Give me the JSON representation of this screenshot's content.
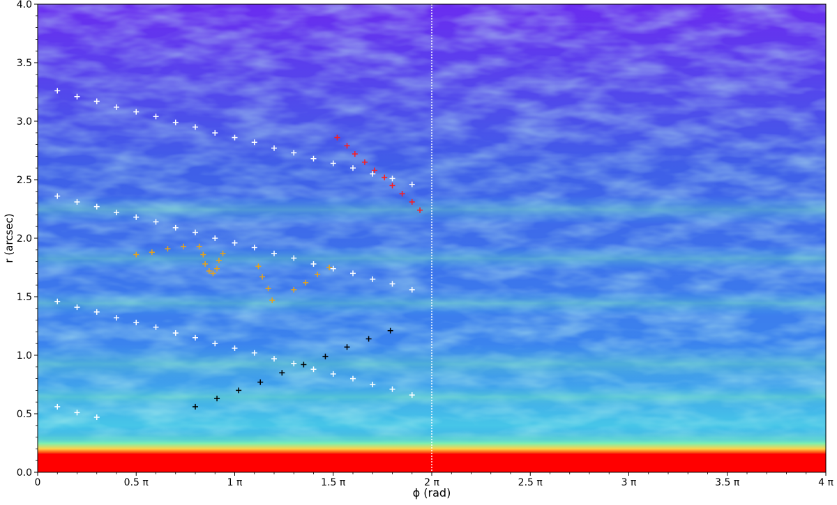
{
  "chart_data": {
    "type": "heatmap",
    "title": "",
    "xlabel": "ϕ (rad)",
    "ylabel": "r (arcsec)",
    "xlim": [
      0,
      4
    ],
    "ylim": [
      0.0,
      4.0
    ],
    "x_unit": "π rad",
    "xticks": [
      0,
      0.5,
      1,
      1.5,
      2,
      2.5,
      3,
      3.5,
      4
    ],
    "xtick_labels": [
      "0",
      "0.5 π",
      "1 π",
      "1.5 π",
      "2 π",
      "2.5 π",
      "3 π",
      "3.5 π",
      "4 π"
    ],
    "yticks": [
      0.0,
      0.5,
      1.0,
      1.5,
      2.0,
      2.5,
      3.0,
      3.5,
      4.0
    ],
    "ytick_labels": [
      "0.0",
      "0.5",
      "1.0",
      "1.5",
      "2.0",
      "2.5",
      "3.0",
      "3.5",
      "4.0"
    ],
    "colormap": "rainbow",
    "grid": false,
    "reference_line": {
      "x": 2,
      "color": "#ffffff",
      "style": "dotted"
    },
    "series": [
      {
        "color": "#ffffff",
        "marker": "+",
        "points": [
          [
            0.1,
            3.26
          ],
          [
            0.2,
            3.21
          ],
          [
            0.3,
            3.17
          ],
          [
            0.4,
            3.12
          ],
          [
            0.5,
            3.08
          ],
          [
            0.6,
            3.04
          ],
          [
            0.7,
            2.99
          ],
          [
            0.8,
            2.95
          ],
          [
            0.9,
            2.9
          ],
          [
            1.0,
            2.86
          ],
          [
            1.1,
            2.82
          ],
          [
            1.2,
            2.77
          ],
          [
            1.3,
            2.73
          ],
          [
            1.4,
            2.68
          ],
          [
            1.5,
            2.64
          ],
          [
            1.6,
            2.6
          ],
          [
            1.7,
            2.55
          ],
          [
            1.8,
            2.51
          ],
          [
            1.9,
            2.46
          ]
        ]
      },
      {
        "color": "#ffffff",
        "marker": "+",
        "points": [
          [
            0.1,
            2.36
          ],
          [
            0.2,
            2.31
          ],
          [
            0.3,
            2.27
          ],
          [
            0.4,
            2.22
          ],
          [
            0.5,
            2.18
          ],
          [
            0.6,
            2.14
          ],
          [
            0.7,
            2.09
          ],
          [
            0.8,
            2.05
          ],
          [
            0.9,
            2.0
          ],
          [
            1.0,
            1.96
          ],
          [
            1.1,
            1.92
          ],
          [
            1.2,
            1.87
          ],
          [
            1.3,
            1.83
          ],
          [
            1.4,
            1.78
          ],
          [
            1.5,
            1.74
          ],
          [
            1.6,
            1.7
          ],
          [
            1.7,
            1.65
          ],
          [
            1.8,
            1.61
          ],
          [
            1.9,
            1.56
          ]
        ]
      },
      {
        "color": "#ffffff",
        "marker": "+",
        "points": [
          [
            0.1,
            1.46
          ],
          [
            0.2,
            1.41
          ],
          [
            0.3,
            1.37
          ],
          [
            0.4,
            1.32
          ],
          [
            0.5,
            1.28
          ],
          [
            0.6,
            1.24
          ],
          [
            0.7,
            1.19
          ],
          [
            0.8,
            1.15
          ],
          [
            0.9,
            1.1
          ],
          [
            1.0,
            1.06
          ],
          [
            1.1,
            1.02
          ],
          [
            1.2,
            0.97
          ],
          [
            1.3,
            0.93
          ],
          [
            1.4,
            0.88
          ],
          [
            1.5,
            0.84
          ],
          [
            1.6,
            0.8
          ],
          [
            1.7,
            0.75
          ],
          [
            1.8,
            0.71
          ],
          [
            1.9,
            0.66
          ]
        ]
      },
      {
        "color": "#ffffff",
        "marker": "+",
        "points": [
          [
            0.1,
            0.56
          ],
          [
            0.2,
            0.51
          ],
          [
            0.3,
            0.47
          ]
        ]
      },
      {
        "color": "#e8a317",
        "marker": "+",
        "points": [
          [
            0.5,
            1.86
          ],
          [
            0.58,
            1.88
          ],
          [
            0.66,
            1.91
          ],
          [
            0.74,
            1.93
          ],
          [
            0.82,
            1.93
          ],
          [
            0.84,
            1.86
          ],
          [
            0.85,
            1.78
          ],
          [
            0.87,
            1.72
          ],
          [
            0.89,
            1.7
          ],
          [
            0.91,
            1.74
          ],
          [
            0.92,
            1.81
          ],
          [
            0.94,
            1.87
          ],
          [
            1.12,
            1.76
          ],
          [
            1.14,
            1.67
          ],
          [
            1.17,
            1.57
          ],
          [
            1.19,
            1.47
          ],
          [
            1.3,
            1.56
          ],
          [
            1.36,
            1.62
          ],
          [
            1.42,
            1.69
          ],
          [
            1.48,
            1.75
          ]
        ]
      },
      {
        "color": "#ff1a1a",
        "marker": "+",
        "points": [
          [
            1.52,
            2.86
          ],
          [
            1.57,
            2.79
          ],
          [
            1.61,
            2.72
          ],
          [
            1.66,
            2.65
          ],
          [
            1.71,
            2.58
          ],
          [
            1.76,
            2.52
          ],
          [
            1.8,
            2.45
          ],
          [
            1.85,
            2.38
          ],
          [
            1.9,
            2.31
          ],
          [
            1.94,
            2.24
          ]
        ]
      },
      {
        "color": "#000000",
        "marker": "+",
        "points": [
          [
            0.8,
            0.56
          ],
          [
            0.91,
            0.63
          ],
          [
            1.02,
            0.7
          ],
          [
            1.13,
            0.77
          ],
          [
            1.24,
            0.85
          ],
          [
            1.35,
            0.92
          ],
          [
            1.46,
            0.99
          ],
          [
            1.57,
            1.07
          ],
          [
            1.68,
            1.14
          ],
          [
            1.79,
            1.21
          ]
        ]
      }
    ]
  }
}
